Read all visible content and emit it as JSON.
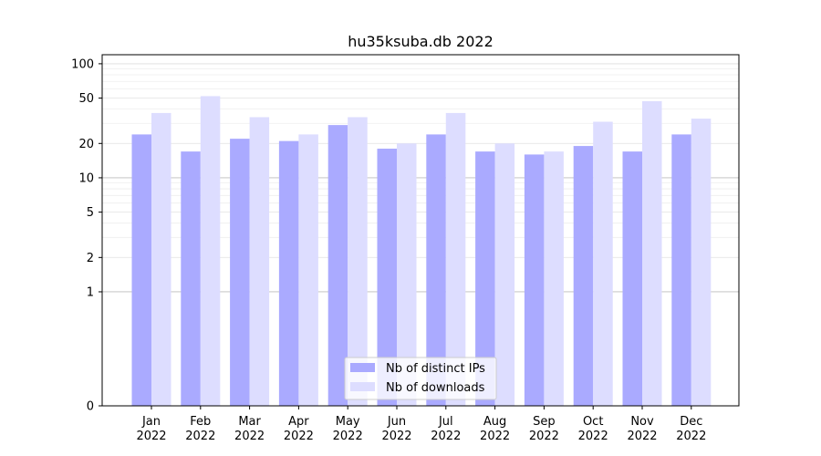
{
  "chart_data": {
    "type": "bar",
    "title": "hu35ksuba.db 2022",
    "xlabel": "",
    "ylabel": "",
    "y_scale": "symlog",
    "ylim": [
      0,
      120
    ],
    "yticks": [
      0,
      1,
      2,
      5,
      10,
      20,
      50,
      100
    ],
    "categories": [
      "Jan\n2022",
      "Feb\n2022",
      "Mar\n2022",
      "Apr\n2022",
      "May\n2022",
      "Jun\n2022",
      "Jul\n2022",
      "Aug\n2022",
      "Sep\n2022",
      "Oct\n2022",
      "Nov\n2022",
      "Dec\n2022"
    ],
    "series": [
      {
        "name": "Nb of distinct IPs",
        "color": "#aaaaff",
        "values": [
          24,
          17,
          22,
          21,
          29,
          18,
          24,
          17,
          16,
          19,
          17,
          24
        ]
      },
      {
        "name": "Nb of downloads",
        "color": "#ddddff",
        "values": [
          37,
          52,
          34,
          24,
          34,
          20,
          37,
          20,
          17,
          31,
          47,
          33
        ]
      }
    ],
    "legend_position": "bottom-center",
    "grid": true
  }
}
